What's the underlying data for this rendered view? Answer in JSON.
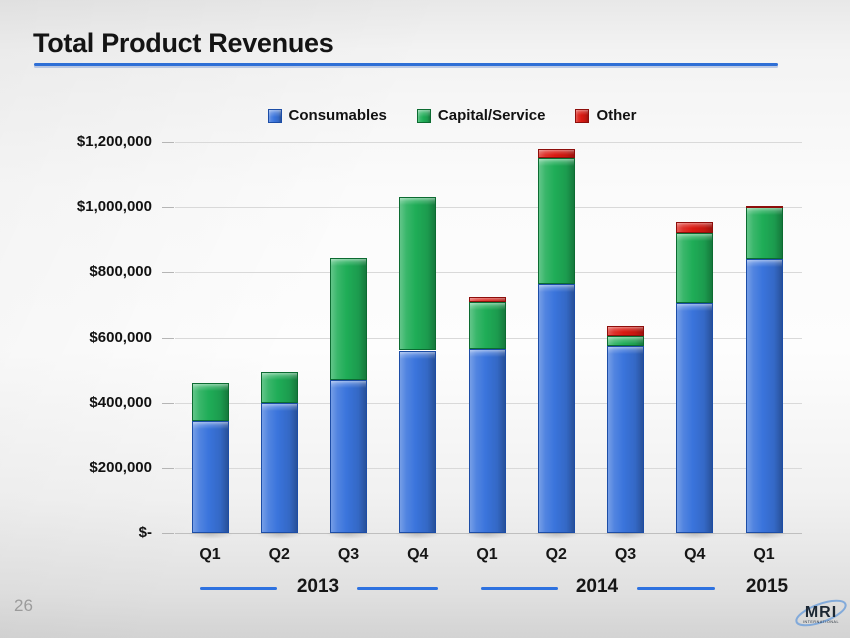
{
  "slide": {
    "title": "Total Product Revenues",
    "page_number": "26",
    "logo": {
      "name": "MRI",
      "subtext": "INTERNATIONAL"
    }
  },
  "chart_data": {
    "type": "bar",
    "stacked": true,
    "title": "Total Product Revenues",
    "categories": [
      "Q1",
      "Q2",
      "Q3",
      "Q4",
      "Q1",
      "Q2",
      "Q3",
      "Q4",
      "Q1"
    ],
    "year_groups": [
      {
        "label": "2013",
        "span": [
          0,
          3
        ]
      },
      {
        "label": "2014",
        "span": [
          4,
          7
        ]
      },
      {
        "label": "2015",
        "span": [
          8,
          8
        ]
      }
    ],
    "series": [
      {
        "name": "Consumables",
        "color": "#3a74dc",
        "values": [
          345000,
          400000,
          470000,
          560000,
          565000,
          765000,
          575000,
          705000,
          840000
        ]
      },
      {
        "name": "Capital/Service",
        "color": "#1fad57",
        "values": [
          115000,
          95000,
          375000,
          470000,
          145000,
          385000,
          30000,
          215000,
          160000
        ]
      },
      {
        "name": "Other",
        "color": "#da1a12",
        "values": [
          0,
          0,
          0,
          0,
          15000,
          30000,
          30000,
          35000,
          5000
        ]
      }
    ],
    "totals": [
      460000,
      495000,
      845000,
      1030000,
      725000,
      1180000,
      635000,
      955000,
      1005000
    ],
    "ylim": [
      0,
      1200000
    ],
    "ytick_step": 200000,
    "ytick_labels": [
      "$-",
      "$200,000",
      "$400,000",
      "$600,000",
      "$800,000",
      "$1,000,000",
      "$1,200,000"
    ],
    "xlabel": "",
    "ylabel": "",
    "grid": true,
    "legend_position": "top"
  }
}
